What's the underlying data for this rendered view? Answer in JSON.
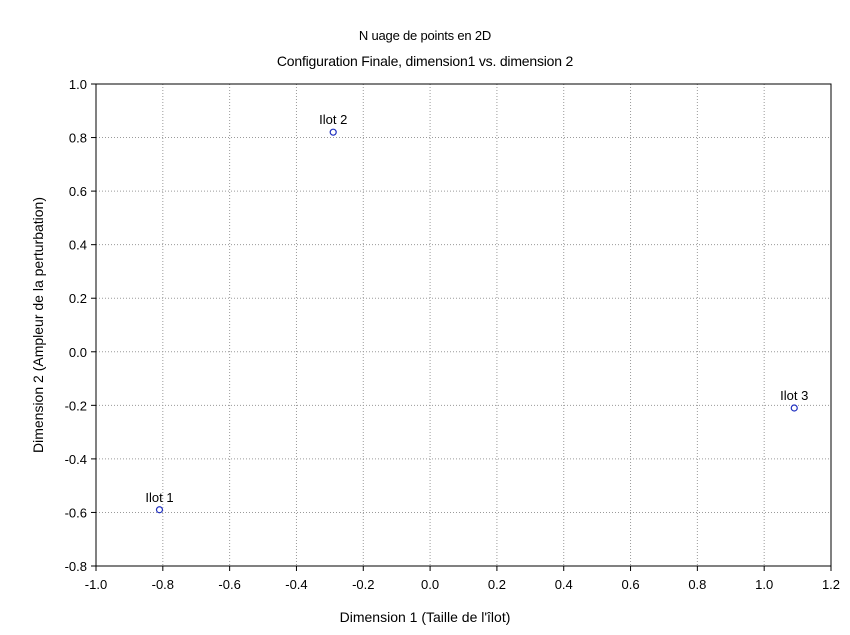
{
  "chart_data": {
    "type": "scatter",
    "title": "N uage de points en 2D",
    "subtitle": "Configuration Finale, dimension1 vs. dimension  2",
    "xlabel": "Dimension 1 (Taille de l'îlot)",
    "ylabel": "Dimension 2 (Ampleur de la perturbation)",
    "xlim": [
      -1.0,
      1.2
    ],
    "ylim": [
      -0.8,
      1.0
    ],
    "xticks": [
      -1.0,
      -0.8,
      -0.6,
      -0.4,
      -0.2,
      0.0,
      0.2,
      0.4,
      0.6,
      0.8,
      1.0,
      1.2
    ],
    "yticks": [
      -0.8,
      -0.6,
      -0.4,
      -0.2,
      0.0,
      0.2,
      0.4,
      0.6,
      0.8,
      1.0
    ],
    "xtick_labels": [
      "-1.0",
      "-0.8",
      "-0.6",
      "-0.4",
      "-0.2",
      "0.0",
      "0.2",
      "0.4",
      "0.6",
      "0.8",
      "1.0",
      "1.2"
    ],
    "ytick_labels": [
      "-0.8",
      "-0.6",
      "-0.4",
      "-0.2",
      "0.0",
      "0.2",
      "0.4",
      "0.6",
      "0.8",
      "1.0"
    ],
    "grid": true,
    "marker_color": "#1f2fbf",
    "points": [
      {
        "label": "Ilot 1",
        "x": -0.81,
        "y": -0.59
      },
      {
        "label": "Ilot 2",
        "x": -0.29,
        "y": 0.82
      },
      {
        "label": "Ilot 3",
        "x": 1.09,
        "y": -0.21
      }
    ]
  }
}
